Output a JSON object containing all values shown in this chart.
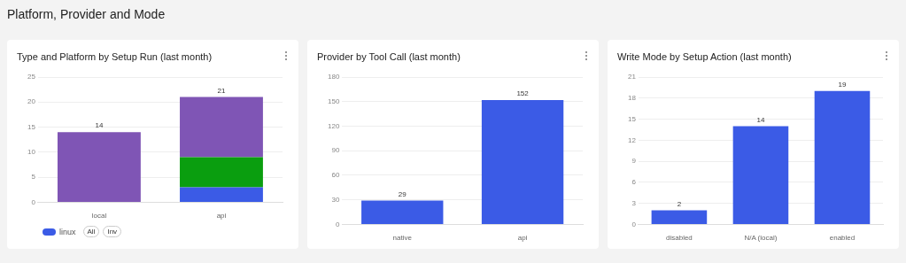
{
  "chart_data": [
    {
      "type": "other",
      "title": "Platform, Provider and Mode"
    },
    {
      "type": "bar",
      "title": "Type and Platform by Setup Run (last month)",
      "categories": [
        "local",
        "api"
      ],
      "stacked": true,
      "series": [
        {
          "name": "linux",
          "color": "#3b5be6",
          "values": [
            0,
            3
          ]
        },
        {
          "color": "#0a9e0f",
          "values": [
            0,
            6
          ]
        },
        {
          "color": "#7f55b5",
          "values": [
            14,
            12
          ]
        }
      ],
      "totals": [
        "14",
        "21"
      ],
      "ylim": [
        0,
        25
      ],
      "yticks": [
        0,
        5,
        10,
        15,
        20,
        25
      ],
      "grid": "y",
      "legend": "bottom left",
      "annotations": [
        "All",
        "Inv"
      ]
    },
    {
      "type": "bar",
      "title": "Provider by Tool Call (last month)",
      "categories": [
        "native",
        "api"
      ],
      "values": [
        29,
        152
      ],
      "color": "#3b5be6",
      "data_labels": true,
      "ylim": [
        0,
        180
      ],
      "yticks": [
        0,
        30,
        60,
        90,
        120,
        150,
        180
      ],
      "grid": "y"
    },
    {
      "type": "bar",
      "title": "Write Mode by Setup Action (last month)",
      "categories": [
        "disabled",
        "N/A (local)",
        "enabled"
      ],
      "values": [
        2,
        14,
        19
      ],
      "color": "#3b5be6",
      "data_labels": true,
      "ylim": [
        0,
        21
      ],
      "yticks": [
        0,
        3,
        6,
        9,
        12,
        15,
        18,
        21
      ],
      "grid": "y"
    }
  ]
}
